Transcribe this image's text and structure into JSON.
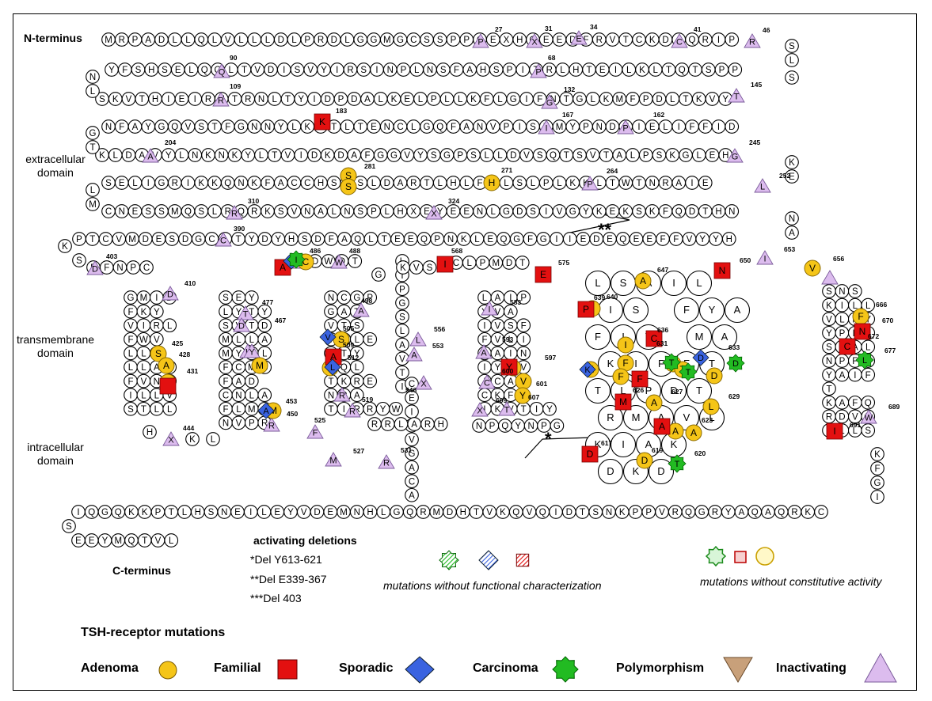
{
  "labels": {
    "n_terminus": "N-terminus",
    "extracellular": [
      "extracellular",
      "domain"
    ],
    "transmembrane": [
      "transmembrane",
      "domain"
    ],
    "intracellular": [
      "intracellular",
      "domain"
    ],
    "c_terminus": "C-terminus"
  },
  "deletions": {
    "title": "activating deletions",
    "items": [
      "*Del Y613-621",
      "**Del E339-367",
      "***Del 403"
    ]
  },
  "notes": {
    "no_functional": "mutations without functional characterization",
    "no_constitutive": "mutations without constitutive activity"
  },
  "legend": {
    "title": "TSH-receptor mutations",
    "adenoma": "Adenoma",
    "familial": "Familial",
    "sporadic": "Sporadic",
    "carcinoma": "Carcinoma",
    "polymorphism": "Polymorphism",
    "inactivating": "Inactivating"
  },
  "colors": {
    "adenoma": "#f5c518",
    "familial": "#e31010",
    "sporadic": "#3a63e0",
    "carcinoma": "#22bb22",
    "polymorphism": "#c8a07a",
    "inactivating": "#dcbcee"
  },
  "sequence": {
    "row1": "MRPADLLQLVLLLDLPRDLGGMGCSSPPCEXHQEEDFRVTCKDIQRIP",
    "row2": "YFSHSELQQLTVDISVYIRSINPLNSFAHSPITRLHTEILKLTQTSPP",
    "row3": "SKVTHIEIRNTRNLTYIDPDALKELPLLKFLGIFNTGLKMFPDLTKVY",
    "row4": "NFAYGQVSTFGNNYLKLTLTENCLGQFANVPISTMYPNDTIELIFFID",
    "row5": "KLDAVYLNKNKYLTVIDKDAFGGVYSGPSLLDVSQTSVTALPSKGLEH",
    "row6": "SELIGRIKKQNKFACCHSYSLDARTLHLFSLSLPLKKLTWTNRAIE",
    "row7": "CNESSMQSLRQRKSVNALNSPLHXEYEENLGDSIVGYKEKSKFQDTHN",
    "row8": "PTCVMDESDGCITYDYHSDFAQLTEEQPNKLEQGFGIIEDEQEEFFVYYH",
    "row9": "EFNPC",
    "cterm_row": "IQGQKKPTLHSNEILEYVDEMNHLGQRMDHTVKQVQIDTSNKPPVRQGRYAQAQRKC",
    "cterm_tail": "EEYMQTVL",
    "turn_right_1": "SL",
    "turn_left_1": "NL",
    "turn_right_2": "S",
    "turn_left_2": "GT",
    "turn_right_3": "KE",
    "turn_left_3": "LM",
    "turn_right_4": "NA",
    "intra_tail": "KFGI",
    "icl3": "NPQYNPG"
  },
  "tm1": [
    "GMID",
    "FKY",
    "VIRL",
    "FWV",
    "LLS",
    "LLAT",
    "FVNG",
    "ILLV",
    "STLL"
  ],
  "tm2": [
    "SEY",
    "LYTY",
    "SVTD",
    "MLLA",
    "MYVL",
    "FCMG",
    "FAD",
    "CNLA",
    "FLMA",
    "NVPR"
  ],
  "tm3": [
    "NCGP",
    "GAT",
    "VTS",
    "ICLE",
    "LTY",
    "TQL",
    "TKRE",
    "NRA",
    "TIRRYW"
  ],
  "tm4": [
    "L",
    "I",
    "P",
    "G",
    "S",
    "L",
    "A",
    "V",
    "T",
    "I",
    "C",
    "E",
    "I",
    "M",
    "V",
    "G",
    "A",
    "C",
    "A"
  ],
  "tm5": [
    "LAIP",
    "YVA",
    "IVSF",
    "FVLI",
    "AAIN",
    "IYLV",
    "ICAV",
    "CKFA",
    "IKVTIY"
  ],
  "tm6": [
    "LSAIL",
    "IS FYA",
    "FIT MA",
    "KIFFT",
    "TLPDT",
    "RMAVL",
    "KIAK",
    "DKD"
  ],
  "tm7": [
    "SNS",
    "KILL",
    "VLFY",
    "YPLN",
    "SCAL",
    "NPFL",
    "YAIF",
    "T",
    "KAFQ",
    "RDVF",
    "ILLS"
  ],
  "ecl2": [
    "DWQT",
    "G",
    "KVS",
    "CLPMDT",
    "E"
  ],
  "icl2": [
    "RRLA",
    "RH"
  ],
  "numbers": [
    "27",
    "31",
    "34",
    "41",
    "46",
    "68",
    "90",
    "109",
    "132",
    "145",
    "162",
    "167",
    "183",
    "204",
    "245",
    "252",
    "264",
    "271",
    "281",
    "310",
    "324",
    "390",
    "403",
    "410",
    "425",
    "428",
    "431",
    "444",
    "450",
    "453",
    "467",
    "477",
    "486",
    "488",
    "498",
    "505",
    "509",
    "512",
    "519",
    "525",
    "527",
    "531",
    "546",
    "553",
    "556",
    "568",
    "575",
    "583",
    "593",
    "597",
    "600",
    "601",
    "607",
    "609",
    "617",
    "619",
    "620",
    "623",
    "626",
    "627",
    "629",
    "631",
    "633",
    "636",
    "639",
    "640",
    "647",
    "650",
    "653",
    "656",
    "666",
    "670",
    "672",
    "677",
    "689",
    "691"
  ],
  "star_single": "*",
  "star_double": "**"
}
